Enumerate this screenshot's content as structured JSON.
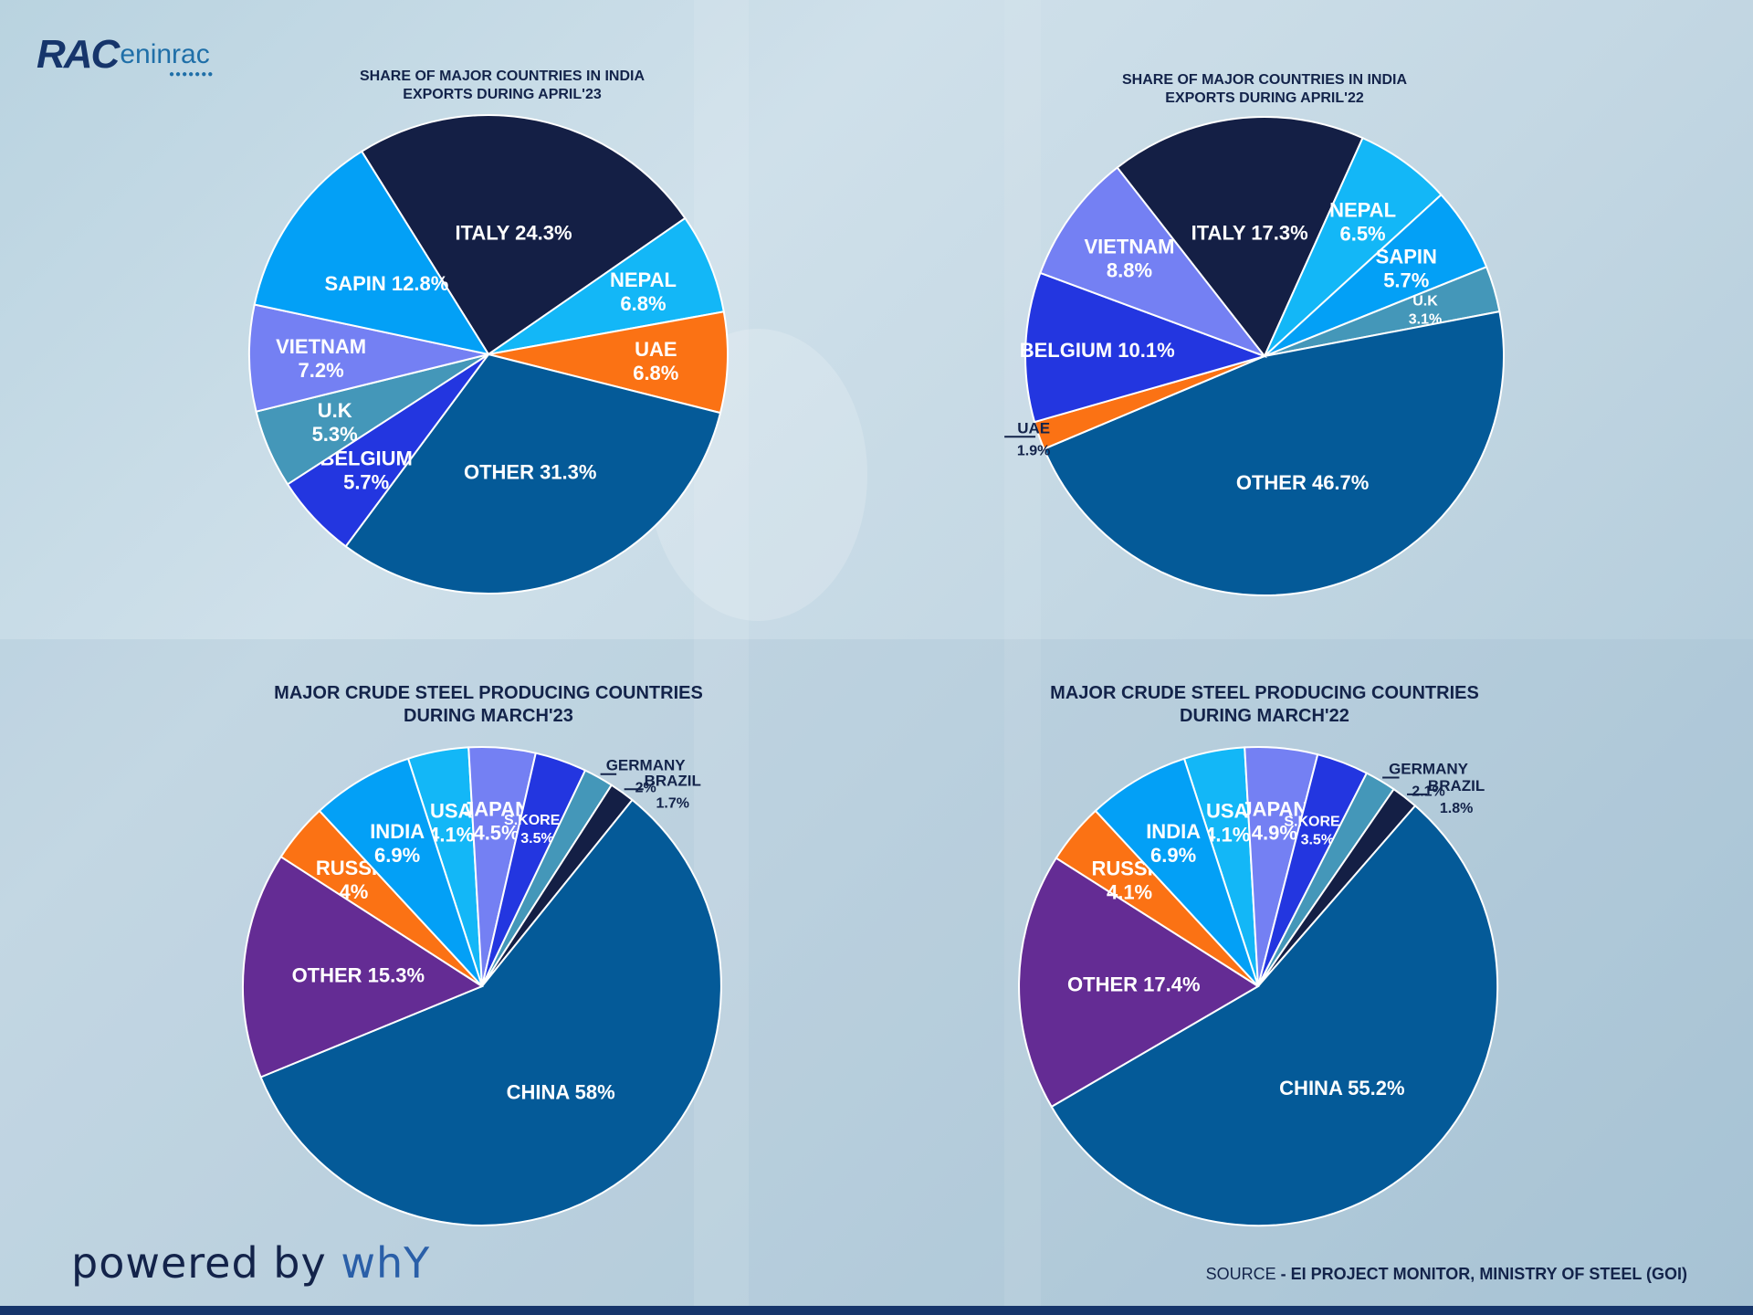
{
  "brand": {
    "logo_main": "RAC",
    "logo_sub": "eninrac",
    "powered_prefix": "powered by ",
    "powered_brand": "whY"
  },
  "source": {
    "prefix": "SOURCE ",
    "text": "- EI PROJECT MONITOR, MINISTRY OF STEEL (GOI)"
  },
  "colors": {
    "navy": "#141f45",
    "royal": "#2336e0",
    "periwinkle": "#7480f3",
    "sky": "#13b7f7",
    "azure": "#03a0f6",
    "orange": "#fb7214",
    "teal": "#4497b9",
    "steel": "#045a98",
    "purple": "#642c94"
  },
  "chart_data": [
    {
      "type": "pie",
      "title_line1": "SHARE OF MAJOR COUNTRIES IN INDIA",
      "title_line2": "EXPORTS DURING APRIL'23",
      "slices": [
        {
          "label": "ITALY",
          "value": 24.3,
          "display": "24.3",
          "color": "#141f45"
        },
        {
          "label": "NEPAL",
          "value": 6.8,
          "display": "6.8",
          "color": "#13b7f7"
        },
        {
          "label": "UAE",
          "value": 6.8,
          "display": "6.8",
          "color": "#fb7214"
        },
        {
          "label": "OTHER",
          "value": 31.3,
          "display": "31.3",
          "color": "#045a98"
        },
        {
          "label": "BELGIUM",
          "value": 5.7,
          "display": "5.7",
          "color": "#2336e0"
        },
        {
          "label": "U.K",
          "value": 5.3,
          "display": "5.3",
          "color": "#4497b9"
        },
        {
          "label": "VIETNAM",
          "value": 7.2,
          "display": "7.2",
          "color": "#7480f3"
        },
        {
          "label": "SAPIN",
          "value": 12.8,
          "display": "12.8",
          "color": "#03a0f6"
        }
      ]
    },
    {
      "type": "pie",
      "title_line1": "SHARE OF MAJOR COUNTRIES IN INDIA",
      "title_line2": "EXPORTS DURING APRIL'22",
      "slices": [
        {
          "label": "ITALY",
          "value": 17.3,
          "display": "17.3",
          "color": "#141f45"
        },
        {
          "label": "NEPAL",
          "value": 6.5,
          "display": "6.5",
          "color": "#13b7f7"
        },
        {
          "label": "SAPIN",
          "value": 5.7,
          "display": "5.7",
          "color": "#03a0f6"
        },
        {
          "label": "U.K",
          "value": 3.1,
          "display": "3.1",
          "color": "#4497b9"
        },
        {
          "label": "OTHER",
          "value": 46.7,
          "display": "46.7",
          "color": "#045a98"
        },
        {
          "label": "UAE",
          "value": 1.9,
          "display": "1.9",
          "color": "#fb7214"
        },
        {
          "label": "BELGIUM",
          "value": 10.1,
          "display": "10.1",
          "color": "#2336e0"
        },
        {
          "label": "VIETNAM",
          "value": 8.8,
          "display": "8.8",
          "color": "#7480f3"
        }
      ]
    },
    {
      "type": "pie",
      "title_line1": "MAJOR CRUDE STEEL PRODUCING COUNTRIES",
      "title_line2": "DURING MARCH'23",
      "slices": [
        {
          "label": "USA",
          "value": 4.1,
          "display": "4.1",
          "color": "#13b7f7"
        },
        {
          "label": "JAPAN",
          "value": 4.5,
          "display": "4.5",
          "color": "#7480f3"
        },
        {
          "label": "S.KOREA",
          "value": 3.5,
          "display": "3.5",
          "color": "#2336e0"
        },
        {
          "label": "GERMANY",
          "value": 2,
          "display": "2",
          "color": "#4497b9"
        },
        {
          "label": "BRAZIL",
          "value": 1.7,
          "display": "1.7",
          "color": "#141f45"
        },
        {
          "label": "CHINA",
          "value": 58,
          "display": "58",
          "color": "#045a98"
        },
        {
          "label": "OTHER",
          "value": 15.3,
          "display": "15.3",
          "color": "#642c94"
        },
        {
          "label": "RUSSIA",
          "value": 4,
          "display": "4",
          "color": "#fb7214"
        },
        {
          "label": "INDIA",
          "value": 6.9,
          "display": "6.9",
          "color": "#03a0f6"
        }
      ]
    },
    {
      "type": "pie",
      "title_line1": "MAJOR CRUDE STEEL PRODUCING COUNTRIES",
      "title_line2": "DURING MARCH'22",
      "slices": [
        {
          "label": "USA",
          "value": 4.1,
          "display": "4.1",
          "color": "#13b7f7"
        },
        {
          "label": "JAPAN",
          "value": 4.9,
          "display": "4.9",
          "color": "#7480f3"
        },
        {
          "label": "S.KOREA",
          "value": 3.5,
          "display": "3.5",
          "color": "#2336e0"
        },
        {
          "label": "GERMANY",
          "value": 2.1,
          "display": "2.1",
          "color": "#4497b9"
        },
        {
          "label": "BRAZIL",
          "value": 1.8,
          "display": "1.8",
          "color": "#141f45"
        },
        {
          "label": "CHINA",
          "value": 55.2,
          "display": "55.2",
          "color": "#045a98"
        },
        {
          "label": "OTHER",
          "value": 17.4,
          "display": "17.4",
          "color": "#642c94"
        },
        {
          "label": "RUSSIA",
          "value": 4.1,
          "display": "4.1",
          "color": "#fb7214"
        },
        {
          "label": "INDIA",
          "value": 6.9,
          "display": "6.9",
          "color": "#03a0f6"
        }
      ]
    }
  ]
}
